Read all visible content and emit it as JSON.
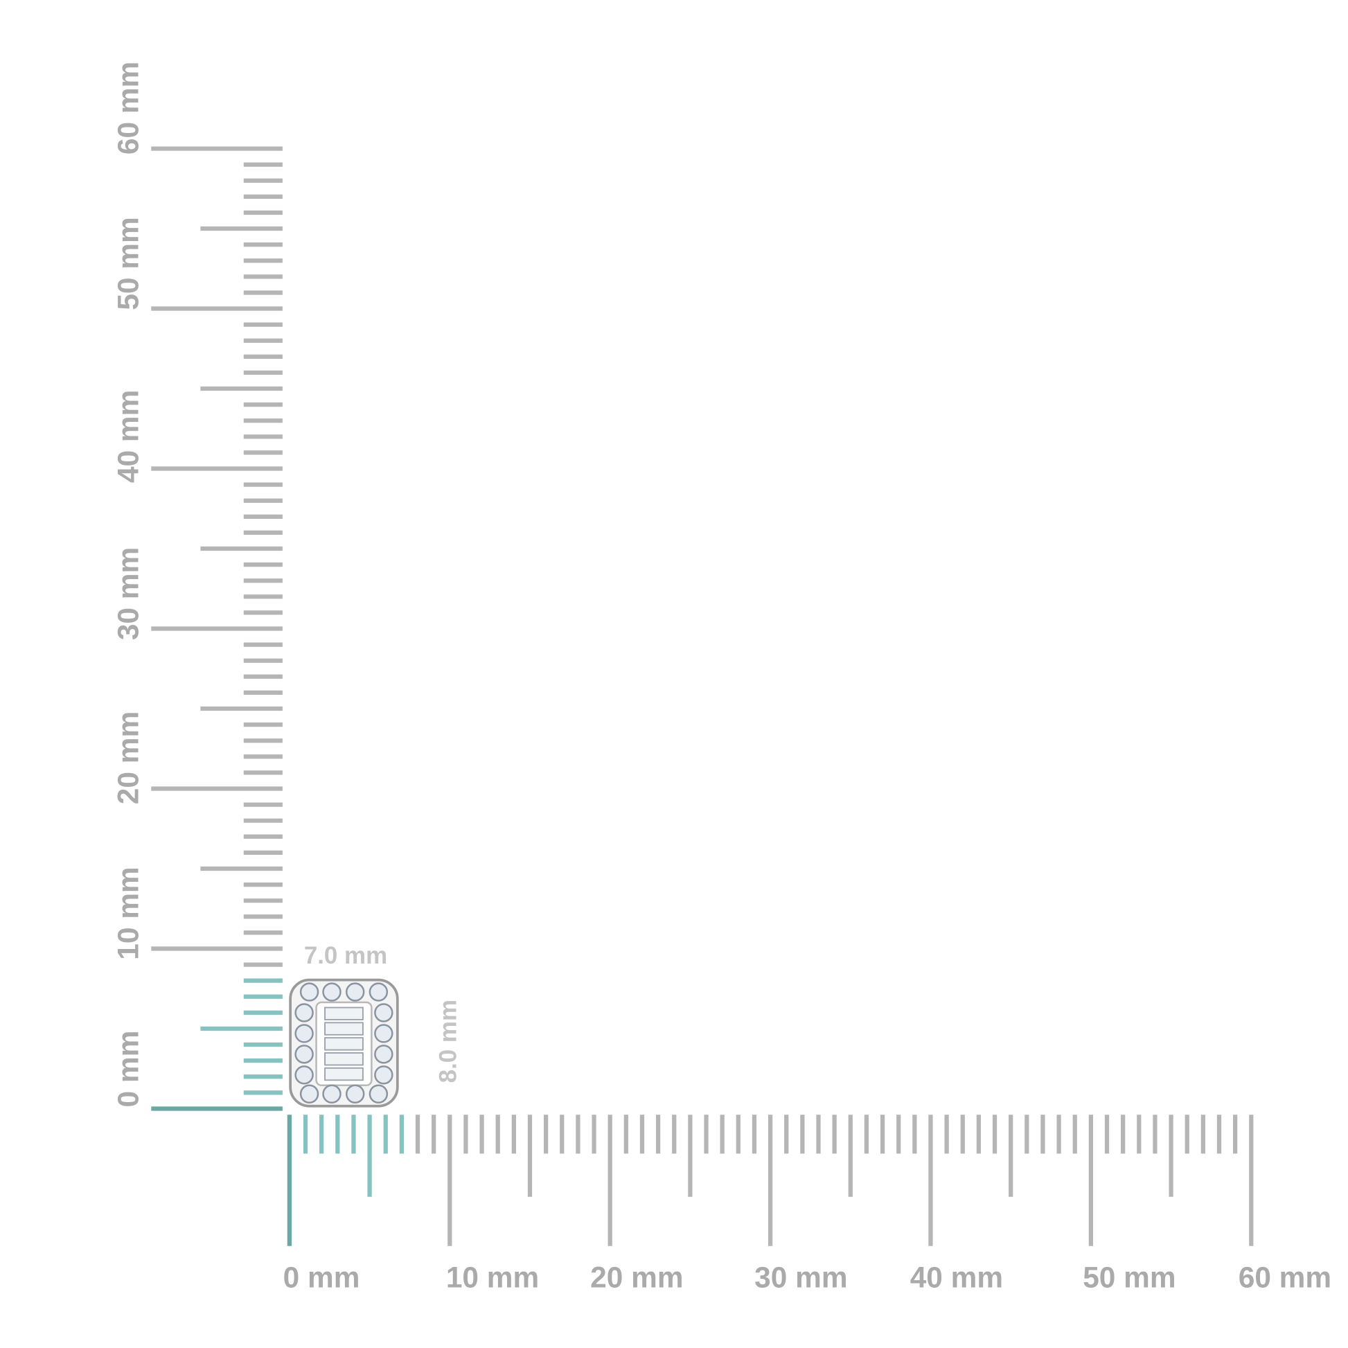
{
  "x_ruler": {
    "labels": [
      "0 mm",
      "10 mm",
      "20 mm",
      "30 mm",
      "40 mm",
      "50 mm",
      "60 mm"
    ]
  },
  "y_ruler": {
    "labels": [
      "0 mm",
      "10 mm",
      "20 mm",
      "30 mm",
      "40 mm",
      "50 mm",
      "60 mm"
    ]
  },
  "dimensions": {
    "width": "7.0 mm",
    "height": "8.0 mm"
  }
}
